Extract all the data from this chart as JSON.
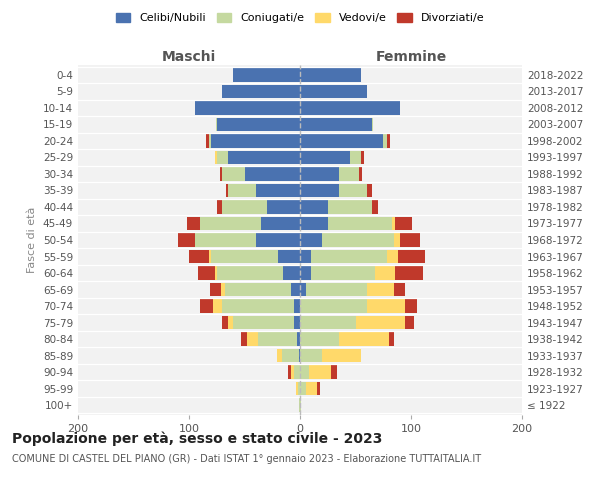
{
  "age_groups": [
    "100+",
    "95-99",
    "90-94",
    "85-89",
    "80-84",
    "75-79",
    "70-74",
    "65-69",
    "60-64",
    "55-59",
    "50-54",
    "45-49",
    "40-44",
    "35-39",
    "30-34",
    "25-29",
    "20-24",
    "15-19",
    "10-14",
    "5-9",
    "0-4"
  ],
  "birth_years": [
    "≤ 1922",
    "1923-1927",
    "1928-1932",
    "1933-1937",
    "1938-1942",
    "1943-1947",
    "1948-1952",
    "1953-1957",
    "1958-1962",
    "1963-1967",
    "1968-1972",
    "1973-1977",
    "1978-1982",
    "1983-1987",
    "1988-1992",
    "1993-1997",
    "1998-2002",
    "2003-2007",
    "2008-2012",
    "2013-2017",
    "2018-2022"
  ],
  "maschi": {
    "celibi": [
      0,
      0,
      0,
      1,
      3,
      5,
      5,
      8,
      15,
      20,
      40,
      35,
      30,
      40,
      50,
      65,
      80,
      75,
      95,
      70,
      60
    ],
    "coniugati": [
      1,
      2,
      5,
      15,
      35,
      55,
      65,
      60,
      60,
      60,
      55,
      55,
      40,
      25,
      20,
      10,
      2,
      1,
      0,
      0,
      0
    ],
    "vedovi": [
      0,
      2,
      3,
      5,
      10,
      5,
      8,
      3,
      2,
      2,
      0,
      0,
      0,
      0,
      0,
      2,
      0,
      0,
      0,
      0,
      0
    ],
    "divorziati": [
      0,
      0,
      3,
      0,
      5,
      5,
      12,
      10,
      15,
      18,
      15,
      12,
      5,
      2,
      2,
      0,
      3,
      0,
      0,
      0,
      0
    ]
  },
  "femmine": {
    "nubili": [
      0,
      0,
      0,
      0,
      0,
      0,
      0,
      5,
      10,
      10,
      20,
      25,
      25,
      35,
      35,
      45,
      75,
      65,
      90,
      60,
      55
    ],
    "coniugate": [
      1,
      5,
      8,
      20,
      35,
      50,
      60,
      55,
      58,
      68,
      65,
      58,
      40,
      25,
      18,
      10,
      3,
      1,
      0,
      0,
      0
    ],
    "vedove": [
      0,
      10,
      20,
      35,
      45,
      45,
      35,
      25,
      18,
      10,
      5,
      3,
      0,
      0,
      0,
      0,
      0,
      0,
      0,
      0,
      0
    ],
    "divorziate": [
      0,
      3,
      5,
      0,
      5,
      8,
      10,
      10,
      25,
      25,
      18,
      15,
      5,
      5,
      3,
      3,
      3,
      0,
      0,
      0,
      0
    ]
  },
  "colors": {
    "celibi": "#4a72b0",
    "coniugati": "#c5d9a0",
    "vedovi": "#ffd96a",
    "divorziati": "#c0392b"
  },
  "xlim": 200,
  "title": "Popolazione per età, sesso e stato civile - 2023",
  "subtitle": "COMUNE DI CASTEL DEL PIANO (GR) - Dati ISTAT 1° gennaio 2023 - Elaborazione TUTTAITALIA.IT",
  "ylabel_left": "Fasce di età",
  "label_maschi": "Maschi",
  "label_femmine": "Femmine",
  "legend": [
    "Celibi/Nubili",
    "Coniugati/e",
    "Vedovi/e",
    "Divorziati/e"
  ],
  "bg_color": "#f2f2f2",
  "title_fontsize": 10,
  "subtitle_fontsize": 7
}
